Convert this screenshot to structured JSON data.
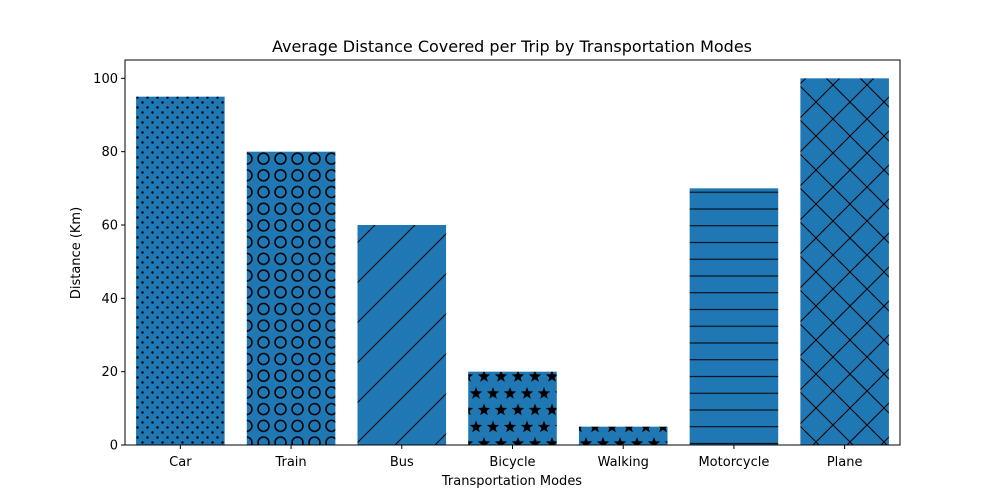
{
  "chart_data": {
    "type": "bar",
    "title": "Average Distance Covered per Trip by Transportation Modes",
    "xlabel": "Transportation Modes",
    "ylabel": "Distance (Km)",
    "categories": [
      "Car",
      "Train",
      "Bus",
      "Bicycle",
      "Walking",
      "Motorcycle",
      "Plane"
    ],
    "values": [
      95,
      80,
      60,
      20,
      5,
      70,
      100
    ],
    "patterns": [
      "dots",
      "circles",
      "diagonal",
      "stars",
      "stars",
      "horizontal",
      "crosshatch"
    ],
    "ylim": [
      0,
      105
    ],
    "yticks": [
      0,
      20,
      40,
      60,
      80,
      100
    ],
    "grid": false,
    "legend": "none",
    "colors": {
      "bar": "#1f77b4",
      "hatch": "#000000",
      "axis": "#000000"
    }
  }
}
